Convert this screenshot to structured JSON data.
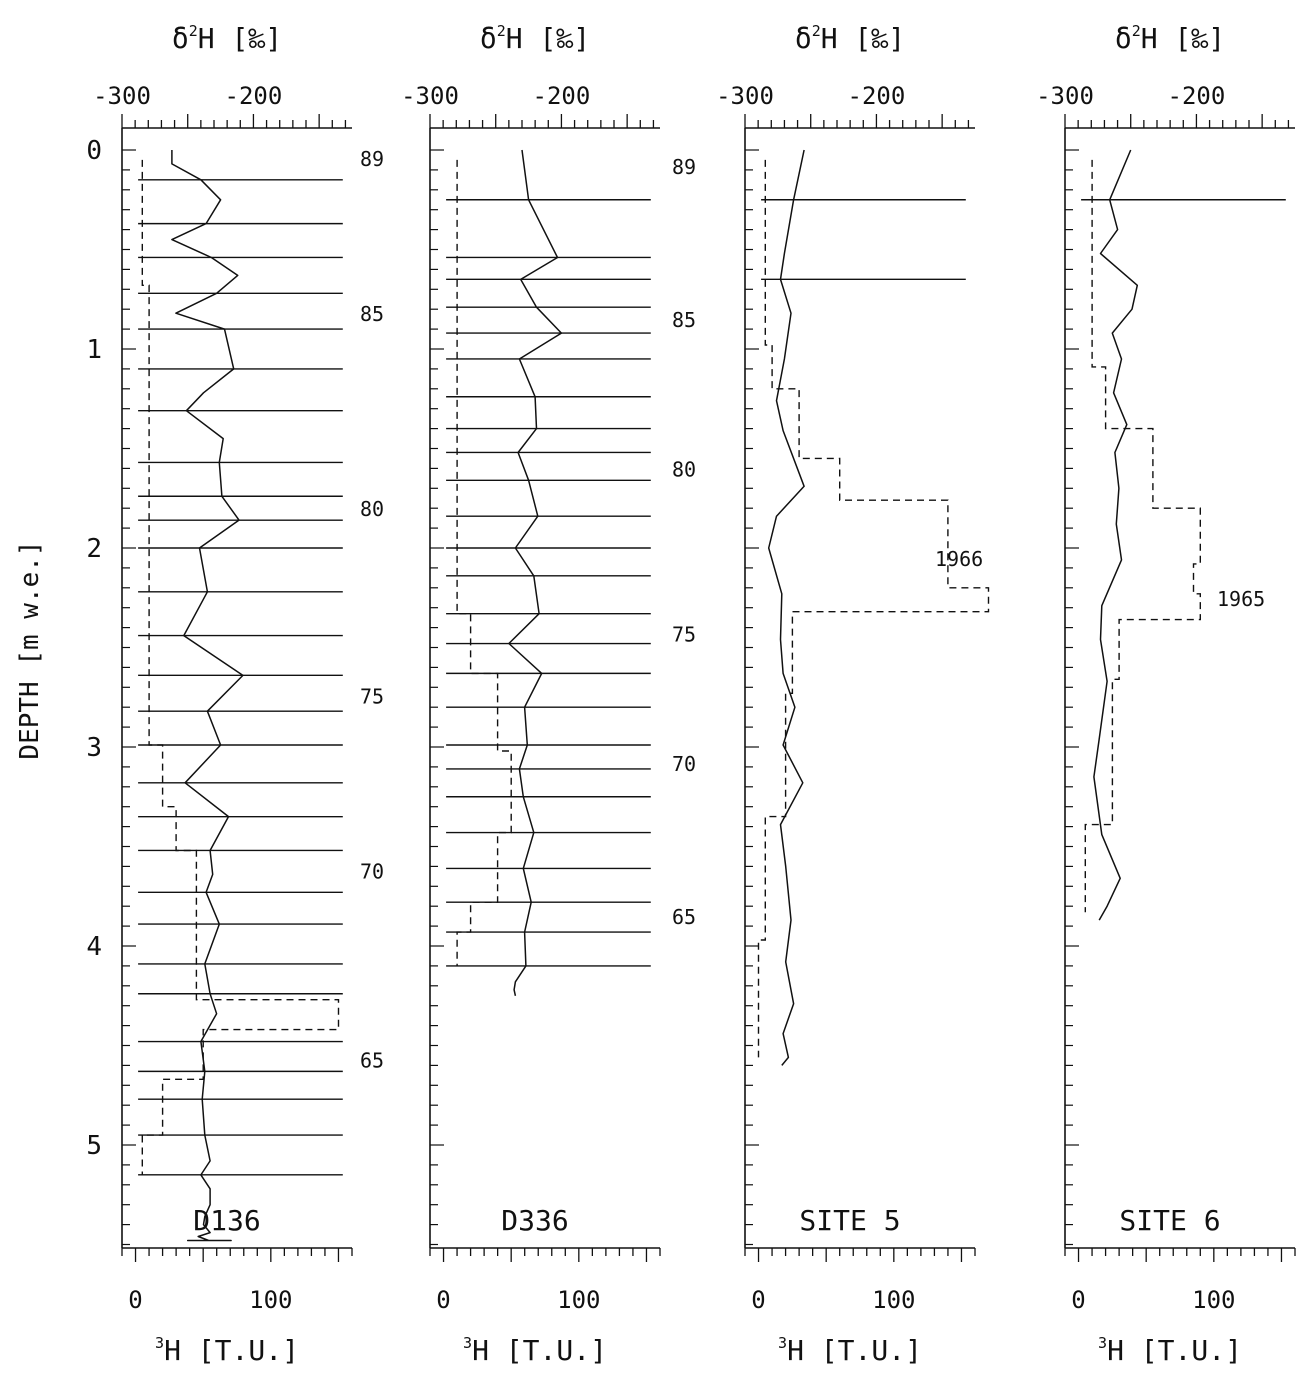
{
  "chart_data": {
    "type": "line",
    "ylabel": "DEPTH [m w.e.]",
    "ylim": [
      0,
      5.5
    ],
    "y_ticks": [
      0,
      1,
      2,
      3,
      4,
      5
    ],
    "y_tick_labels": [
      "0",
      "1",
      "2",
      "3",
      "4",
      "5"
    ],
    "top_axis": {
      "label": "δ²H [‰]",
      "label_parts": [
        "δ",
        "2",
        "H [‰]"
      ],
      "range": [
        -300,
        -125
      ],
      "ticks": [
        -300,
        -200
      ],
      "tick_labels": [
        "-300",
        "-200"
      ]
    },
    "bottom_axis": {
      "label": "³H [T.U.]",
      "label_parts": [
        "3",
        "H [T.U.]"
      ],
      "range": [
        -10,
        160
      ],
      "ticks": [
        0,
        100
      ],
      "tick_labels": [
        "0",
        "100"
      ]
    },
    "panels": [
      {
        "name": "D136",
        "year_markers": [
          {
            "label": "89",
            "depth": 0.04
          },
          {
            "label": "85",
            "depth": 0.82
          },
          {
            "label": "80",
            "depth": 1.8
          },
          {
            "label": "75",
            "depth": 2.74
          },
          {
            "label": "70",
            "depth": 3.62
          },
          {
            "label": "65",
            "depth": 4.57
          }
        ],
        "horizon_depths": [
          0.15,
          0.37,
          0.54,
          0.72,
          0.9,
          1.1,
          1.31,
          1.57,
          1.74,
          1.86,
          2.0,
          2.22,
          2.44,
          2.64,
          2.82,
          2.99,
          3.18,
          3.35,
          3.52,
          3.73,
          3.89,
          4.09,
          4.24,
          4.48,
          4.63,
          4.77,
          4.95,
          5.15
        ],
        "d2h_series": {
          "x": [
            -262,
            -262,
            -240,
            -225,
            -236,
            -262,
            -232,
            -212,
            -228,
            -259,
            -222,
            -215,
            -238,
            -251,
            -223,
            -226,
            -224,
            -211,
            -241,
            -235,
            -253,
            -208,
            -235,
            -225,
            -252,
            -219,
            -233,
            -231,
            -236,
            -226,
            -237,
            -233,
            -228,
            -240,
            -237,
            -239,
            -237,
            -233,
            -240,
            -233,
            -233,
            -237,
            -238,
            -233,
            -242,
            -234,
            -235,
            -228,
            -217,
            -250,
            -234,
            -239,
            -234,
            -240,
            -230,
            -245,
            -242,
            -241,
            -247,
            -237
          ],
          "y": [
            0,
            0.07,
            0.15,
            0.25,
            0.37,
            0.45,
            0.54,
            0.63,
            0.72,
            0.82,
            0.9,
            1.1,
            1.22,
            1.31,
            1.45,
            1.57,
            1.74,
            1.86,
            2.0,
            2.22,
            2.44,
            2.64,
            2.82,
            2.99,
            3.18,
            3.35,
            3.52,
            3.64,
            3.73,
            3.89,
            4.09,
            4.24,
            4.34,
            4.48,
            4.63,
            4.77,
            4.95,
            5.08,
            5.15,
            5.22,
            5.3,
            5.36,
            5.4,
            5.44,
            5.46,
            5.48,
            5.48,
            5.48,
            5.48,
            5.48,
            5.48,
            5.48,
            5.48,
            5.48,
            5.48,
            5.48,
            5.48,
            5.48,
            5.48,
            5.48
          ]
        },
        "tritium_series": {
          "x": [
            5,
            5,
            10,
            10,
            20,
            20,
            30,
            30,
            45,
            45,
            150,
            150,
            50,
            50,
            20,
            20,
            5,
            5
          ],
          "y": [
            0.05,
            0.68,
            0.68,
            2.99,
            2.99,
            3.3,
            3.3,
            3.52,
            3.52,
            4.27,
            4.27,
            4.42,
            4.42,
            4.67,
            4.67,
            4.95,
            4.95,
            5.15
          ]
        }
      },
      {
        "name": "D336",
        "year_markers": [
          {
            "label": "89",
            "depth": 0.08
          },
          {
            "label": "85",
            "depth": 0.85
          },
          {
            "label": "80",
            "depth": 1.6
          },
          {
            "label": "75",
            "depth": 2.43
          },
          {
            "label": "70",
            "depth": 3.08
          },
          {
            "label": "65",
            "depth": 3.85
          }
        ],
        "horizon_depths": [
          0.25,
          0.54,
          0.65,
          0.79,
          0.92,
          1.05,
          1.24,
          1.4,
          1.52,
          1.66,
          1.84,
          2.0,
          2.14,
          2.33,
          2.48,
          2.63,
          2.8,
          2.99,
          3.11,
          3.25,
          3.43,
          3.61,
          3.78,
          3.93,
          4.1
        ],
        "d2h_series": {
          "x": [
            -230,
            -225,
            -203,
            -231,
            -219,
            -200,
            -232,
            -220,
            -219,
            -233,
            -225,
            -218,
            -235,
            -221,
            -217,
            -240,
            -215,
            -228,
            -226,
            -232,
            -229,
            -221,
            -229,
            -223,
            -228,
            -227,
            -235,
            -236,
            -235
          ],
          "y": [
            0,
            0.25,
            0.54,
            0.65,
            0.79,
            0.92,
            1.05,
            1.24,
            1.4,
            1.52,
            1.66,
            1.84,
            2.0,
            2.14,
            2.33,
            2.48,
            2.63,
            2.8,
            2.99,
            3.11,
            3.25,
            3.43,
            3.61,
            3.78,
            3.93,
            4.1,
            4.18,
            4.22,
            4.25
          ]
        },
        "tritium_series": {
          "x": [
            10,
            10,
            20,
            20,
            40,
            40,
            50,
            50,
            40,
            40,
            20,
            20,
            10,
            10
          ],
          "y": [
            0.05,
            2.33,
            2.33,
            2.63,
            2.63,
            3.02,
            3.02,
            3.43,
            3.43,
            3.78,
            3.78,
            3.93,
            3.93,
            4.1
          ]
        }
      },
      {
        "name": "SITE 5",
        "year_markers": [
          {
            "label": "1966",
            "depth": 2.05
          }
        ],
        "horizon_depths": [
          0.25,
          0.65
        ],
        "d2h_series": {
          "x": [
            -255,
            -263,
            -270,
            -273,
            -265,
            -270,
            -276,
            -271,
            -255,
            -276,
            -282,
            -272,
            -273,
            -271,
            -262,
            -271,
            -256,
            -273,
            -269,
            -265,
            -269,
            -263,
            -271,
            -267,
            -272
          ],
          "y": [
            0,
            0.25,
            0.52,
            0.65,
            0.82,
            1.05,
            1.26,
            1.41,
            1.69,
            1.84,
            2.0,
            2.23,
            2.46,
            2.63,
            2.8,
            2.99,
            3.18,
            3.39,
            3.6,
            3.87,
            4.08,
            4.29,
            4.44,
            4.56,
            4.6
          ]
        },
        "tritium_series": {
          "x": [
            5,
            5,
            10,
            10,
            30,
            30,
            60,
            60,
            140,
            140,
            170,
            170,
            25,
            25,
            20,
            20,
            5,
            5,
            0,
            0
          ],
          "y": [
            0.05,
            0.98,
            0.98,
            1.2,
            1.2,
            1.55,
            1.55,
            1.76,
            1.76,
            2.2,
            2.2,
            2.32,
            2.32,
            2.73,
            2.73,
            3.35,
            3.35,
            3.97,
            3.97,
            4.56
          ]
        }
      },
      {
        "name": "SITE 6",
        "year_markers": [
          {
            "label": "1965",
            "depth": 2.25
          }
        ],
        "horizon_depths": [
          0.25
        ],
        "d2h_series": {
          "x": [
            -250,
            -266,
            -260,
            -273,
            -245,
            -249,
            -264,
            -257,
            -263,
            -253,
            -262,
            -259,
            -261,
            -257,
            -272,
            -273,
            -268,
            -274,
            -278,
            -272,
            -258,
            -268,
            -274
          ],
          "y": [
            0,
            0.25,
            0.4,
            0.52,
            0.68,
            0.8,
            0.92,
            1.05,
            1.22,
            1.38,
            1.52,
            1.7,
            1.88,
            2.06,
            2.29,
            2.46,
            2.67,
            2.96,
            3.15,
            3.44,
            3.66,
            3.8,
            3.87
          ]
        },
        "tritium_series": {
          "x": [
            10,
            10,
            20,
            20,
            55,
            55,
            90,
            90,
            85,
            85,
            90,
            90,
            30,
            30,
            25,
            25,
            5,
            5
          ],
          "y": [
            0.05,
            1.09,
            1.09,
            1.4,
            1.4,
            1.8,
            1.8,
            2.08,
            2.08,
            2.23,
            2.23,
            2.36,
            2.36,
            2.66,
            2.66,
            3.39,
            3.39,
            3.83
          ]
        }
      }
    ]
  }
}
